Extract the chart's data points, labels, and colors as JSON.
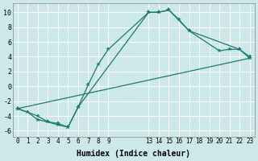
{
  "xlabel": "Humidex (Indice chaleur)",
  "bg_color": "#cce8e8",
  "grid_color": "#ffffff",
  "line_color": "#1a7a6e",
  "xlim": [
    -0.5,
    23.5
  ],
  "ylim": [
    -6.8,
    11.2
  ],
  "xticks": [
    0,
    1,
    2,
    3,
    4,
    5,
    6,
    7,
    8,
    9,
    13,
    14,
    15,
    16,
    17,
    18,
    19,
    20,
    21,
    22,
    23
  ],
  "yticks": [
    -6,
    -4,
    -2,
    0,
    2,
    4,
    6,
    8,
    10
  ],
  "line1_x": [
    0,
    1,
    2,
    3,
    4,
    5,
    6,
    7,
    8,
    9,
    13,
    14,
    15,
    16,
    17,
    22,
    23
  ],
  "line1_y": [
    -3.0,
    -3.5,
    -4.5,
    -4.8,
    -5.2,
    -5.5,
    -2.8,
    0.2,
    3.0,
    5.0,
    10.0,
    10.0,
    10.3,
    9.0,
    7.5,
    5.0,
    3.8
  ],
  "line2_x": [
    0,
    2,
    3,
    4,
    5,
    6,
    13,
    14,
    15,
    17,
    20,
    21,
    22,
    23
  ],
  "line2_y": [
    -3.0,
    -4.0,
    -4.8,
    -5.0,
    -5.5,
    -2.8,
    10.0,
    10.0,
    10.3,
    7.5,
    4.8,
    5.0,
    5.0,
    4.0
  ],
  "line3_x": [
    0,
    23
  ],
  "line3_y": [
    -3.0,
    3.8
  ]
}
